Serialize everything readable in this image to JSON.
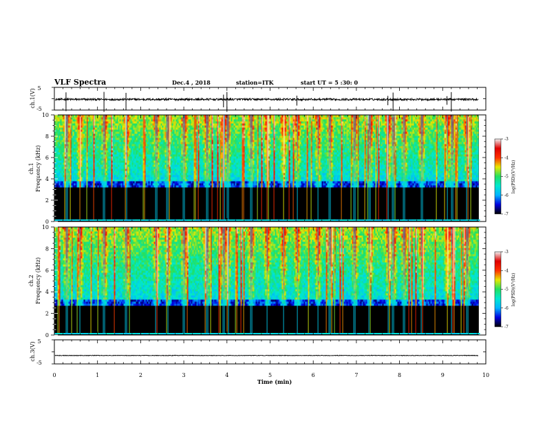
{
  "header": {
    "title": "VLF Spectra",
    "date": "Dec.4 , 2018",
    "station": "station=ITK",
    "start": "start UT = 5 :30: 0"
  },
  "chart_data": [
    {
      "type": "line",
      "panel": "ch1-waveform",
      "ylabel": "ch.1(V)",
      "ylim": [
        -5,
        5
      ],
      "yticks": [
        "5",
        "-5"
      ],
      "baseline": -0.3,
      "spike_times_min": [
        0.27,
        1.15,
        1.66,
        3.92,
        4.0,
        5.62,
        7.73,
        7.85,
        9.1,
        9.2
      ]
    },
    {
      "type": "heatmap",
      "panel": "ch1-spectrogram",
      "ylabel": "ch.1\nFrequency (kHz)",
      "ylim": [
        0,
        10
      ],
      "yticks": [
        "0",
        "2",
        "4",
        "6",
        "8",
        "10"
      ],
      "colorbar": {
        "label": "log(PSD)(V²/Hz)",
        "range": [
          -7,
          -3
        ],
        "ticks": [
          "-3",
          "-4",
          "-5",
          "-6",
          "-7"
        ],
        "colors": [
          "#000000",
          "#0000e0",
          "#00b4ff",
          "#00e8d0",
          "#22e060",
          "#e8e800",
          "#ff3000",
          "#e00000",
          "#f0f0f0"
        ]
      },
      "band_edge_khz": 3.5,
      "bursts_min": [
        0.27,
        0.58,
        1.15,
        1.66,
        2.35,
        2.62,
        3.0,
        3.52,
        3.92,
        4.0,
        4.55,
        4.92,
        5.3,
        5.62,
        6.1,
        6.38,
        6.95,
        7.3,
        7.73,
        7.85,
        8.1,
        8.5,
        9.1,
        9.2,
        9.55
      ]
    },
    {
      "type": "heatmap",
      "panel": "ch2-spectrogram",
      "ylabel": "ch.2\nFrequency (kHz)",
      "ylim": [
        0,
        10
      ],
      "yticks": [
        "0",
        "2",
        "4",
        "6",
        "8",
        "10"
      ],
      "colorbar": {
        "label": "log(PSD)(V²/Hz)",
        "range": [
          -7,
          -3
        ],
        "ticks": [
          "-3",
          "-4",
          "-5",
          "-6",
          "-7"
        ],
        "colors": [
          "#000000",
          "#0000e0",
          "#00b4ff",
          "#00e8d0",
          "#22e060",
          "#e8e800",
          "#ff3000",
          "#e00000",
          "#f0f0f0"
        ]
      },
      "band_edge_khz": 3.0,
      "bursts_min": [
        0.27,
        0.58,
        1.15,
        1.66,
        2.35,
        2.62,
        3.0,
        3.52,
        3.92,
        4.0,
        4.55,
        4.92,
        5.3,
        5.62,
        6.1,
        6.38,
        6.95,
        7.3,
        7.73,
        7.85,
        8.1,
        8.5,
        9.1,
        9.2,
        9.55
      ]
    },
    {
      "type": "line",
      "panel": "ch3-waveform",
      "ylabel": "ch.3(V)",
      "ylim": [
        -5,
        5
      ],
      "yticks": [
        "5",
        "-5"
      ],
      "baseline": -1.5
    }
  ],
  "xaxis": {
    "label": "Time (min)",
    "range": [
      0,
      10
    ],
    "data_end": 9.83,
    "ticks": [
      "0",
      "1",
      "2",
      "3",
      "4",
      "5",
      "6",
      "7",
      "8",
      "9",
      "10"
    ]
  }
}
